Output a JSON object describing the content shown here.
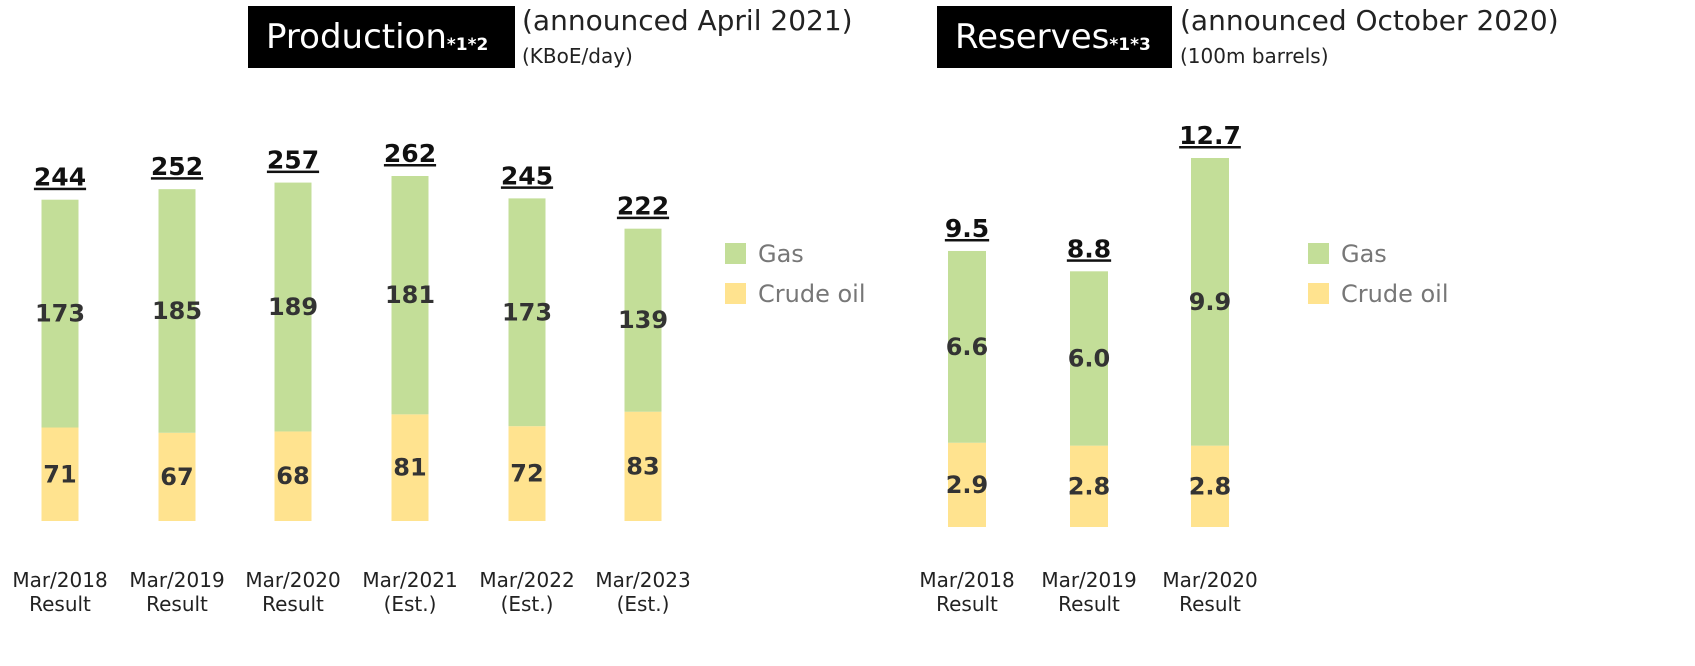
{
  "chart_data": [
    {
      "type": "stacked_bar",
      "title": "Production",
      "title_note": "*1*2",
      "subtitle": "(announced April 2021)",
      "unit": "(KBoE/day)",
      "categories": [
        "Mar/2018 Result",
        "Mar/2019 Result",
        "Mar/2020 Result",
        "Mar/2021 (Est.)",
        "Mar/2022 (Est.)",
        "Mar/2023 (Est.)"
      ],
      "series": [
        {
          "name": "Crude oil",
          "color": "#ffe38f",
          "values": [
            71,
            67,
            68,
            81,
            72,
            83
          ]
        },
        {
          "name": "Gas",
          "color": "#c3de98",
          "values": [
            173,
            185,
            189,
            181,
            173,
            139
          ]
        }
      ],
      "totals": [
        244,
        252,
        257,
        262,
        245,
        222
      ]
    },
    {
      "type": "stacked_bar",
      "title": "Reserves",
      "title_note": "*1*3",
      "subtitle": "(announced October 2020)",
      "unit": "(100m barrels)",
      "categories": [
        "Mar/2018 Result",
        "Mar/2019 Result",
        "Mar/2020 Result"
      ],
      "series": [
        {
          "name": "Crude oil",
          "color": "#ffe38f",
          "values": [
            2.9,
            2.8,
            2.8
          ]
        },
        {
          "name": "Gas",
          "color": "#c3de98",
          "values": [
            6.6,
            6,
            9.9
          ],
          "value_labels": [
            "6.6",
            "6.0",
            "9.9"
          ]
        }
      ],
      "totals": [
        9.5,
        8.8,
        12.7
      ]
    }
  ]
}
